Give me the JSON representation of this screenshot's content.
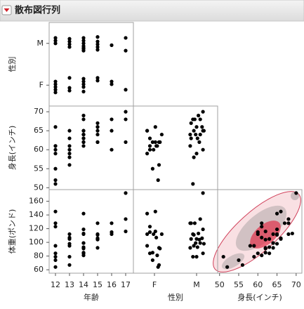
{
  "chart_data": {
    "type": "scatter_matrix",
    "title": "散布図行列",
    "variables": [
      {
        "name": "年齢",
        "lim": [
          11.55,
          17.55
        ],
        "ticks": [
          12,
          13,
          14,
          15,
          16,
          17
        ],
        "values": [
          12,
          12,
          12,
          12,
          12,
          12,
          12,
          12,
          13,
          13,
          13,
          13,
          13,
          13,
          13,
          14,
          14,
          14,
          14,
          14,
          14,
          14,
          14,
          14,
          14,
          14,
          14,
          15,
          15,
          15,
          15,
          15,
          15,
          15,
          16,
          16,
          16,
          17,
          17,
          17
        ]
      },
      {
        "name": "性別",
        "categories": [
          "F",
          "M"
        ],
        "values": [
          "F",
          "F",
          "F",
          "F",
          "F",
          "M",
          "M",
          "M",
          "F",
          "F",
          "F",
          "M",
          "M",
          "M",
          "M",
          "F",
          "F",
          "F",
          "F",
          "F",
          "M",
          "M",
          "M",
          "M",
          "M",
          "M",
          "M",
          "F",
          "F",
          "M",
          "M",
          "M",
          "M",
          "M",
          "F",
          "F",
          "M",
          "F",
          "M",
          "M"
        ]
      },
      {
        "name": "身長(インチ)",
        "lim": [
          49.5,
          71.5
        ],
        "ticks": [
          50,
          55,
          60,
          65,
          70
        ],
        "values": [
          59,
          61,
          55,
          66,
          52,
          60,
          61,
          51,
          60,
          61,
          56,
          65,
          63,
          58,
          59,
          61,
          62,
          65,
          63,
          62,
          63,
          64,
          65,
          64,
          68,
          64,
          69,
          62,
          64,
          67,
          65,
          66,
          62,
          66,
          65,
          60,
          68,
          62,
          68,
          70
        ]
      },
      {
        "name": "体重(ポンド)",
        "lim": [
          55,
          177
        ],
        "ticks": [
          60,
          80,
          100,
          120,
          140,
          160
        ],
        "values": [
          95,
          123,
          74,
          145,
          64,
          84,
          128,
          79,
          112,
          107,
          67,
          98,
          105,
          95,
          79,
          81,
          91,
          142,
          84,
          85,
          93,
          99,
          119,
          92,
          112,
          99,
          113,
          92,
          112,
          128,
          111,
          105,
          104,
          106,
          112,
          115,
          128,
          116,
          134,
          172
        ]
      }
    ],
    "x_vars": [
      0,
      1,
      2
    ],
    "y_vars": [
      1,
      2,
      3
    ]
  }
}
